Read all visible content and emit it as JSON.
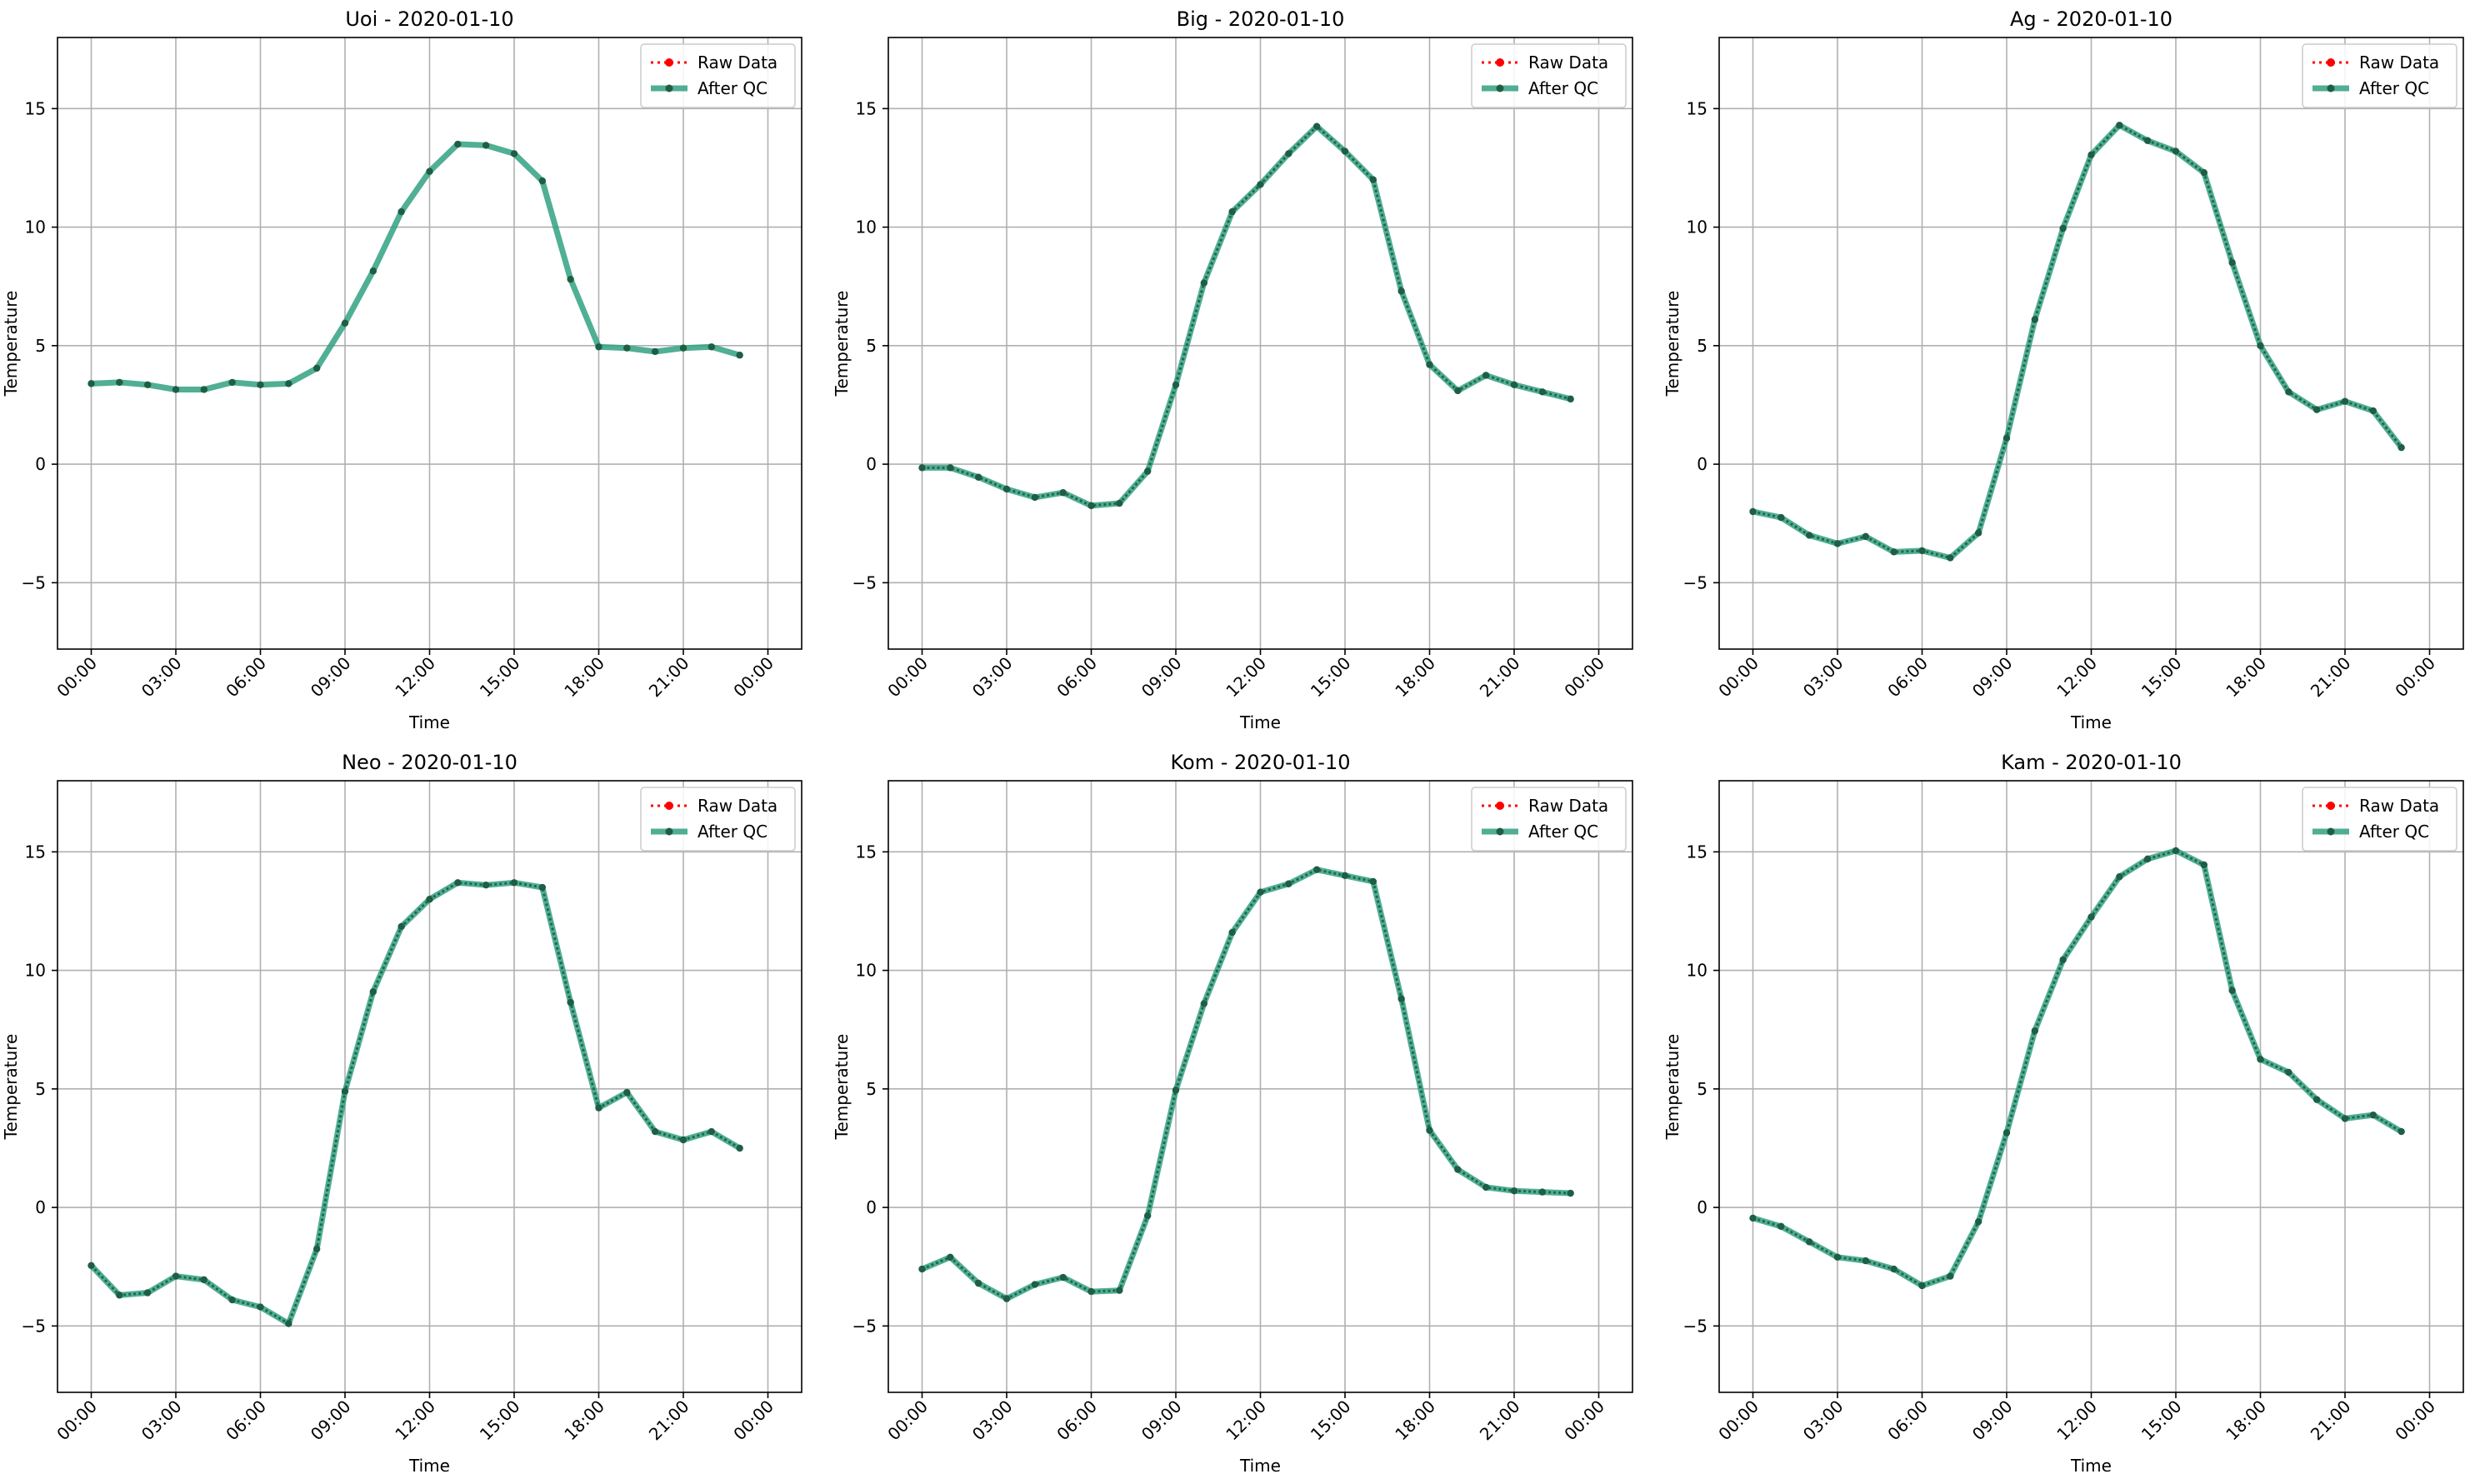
{
  "figure": {
    "background": "#ffffff",
    "raw_color": "#ff0000",
    "qc_color": "#2a9d7c",
    "marker_dark": "#1e5e45"
  },
  "chart_data": [
    {
      "type": "line",
      "title": "Uoi - 2020-01-10",
      "xlabel": "Time",
      "ylabel": "Temperature",
      "x": [
        "00:00",
        "01:00",
        "02:00",
        "03:00",
        "04:00",
        "05:00",
        "06:00",
        "07:00",
        "08:00",
        "09:00",
        "10:00",
        "11:00",
        "12:00",
        "13:00",
        "14:00",
        "15:00",
        "16:00",
        "17:00",
        "18:00",
        "19:00",
        "20:00",
        "21:00",
        "22:00",
        "23:00"
      ],
      "series": [
        {
          "name": "Raw Data",
          "values": [
            3.4,
            3.45,
            3.35,
            3.15,
            3.15,
            3.45,
            3.35,
            3.4,
            4.05,
            5.95,
            8.15,
            10.65,
            12.35,
            13.5,
            13.45,
            13.1,
            11.95,
            7.8,
            4.95,
            4.9,
            4.75,
            4.9,
            4.95,
            4.6
          ],
          "hidden": true
        },
        {
          "name": "After QC",
          "values": [
            3.4,
            3.45,
            3.35,
            3.15,
            3.15,
            3.45,
            3.35,
            3.4,
            4.05,
            5.95,
            8.15,
            10.65,
            12.35,
            13.5,
            13.45,
            13.1,
            11.95,
            7.8,
            4.95,
            4.9,
            4.75,
            4.9,
            4.95,
            4.6
          ]
        }
      ],
      "ylim": [
        -7.8,
        18.0
      ],
      "yticks": [
        "−5",
        "0",
        "5",
        "10",
        "15"
      ],
      "xticks": [
        "00:00",
        "03:00",
        "06:00",
        "09:00",
        "12:00",
        "15:00",
        "18:00",
        "21:00",
        "00:00"
      ],
      "grid": true,
      "legend": "top-right"
    },
    {
      "type": "line",
      "title": "Big - 2020-01-10",
      "xlabel": "Time",
      "ylabel": "Temperature",
      "x": [
        "00:00",
        "01:00",
        "02:00",
        "03:00",
        "04:00",
        "05:00",
        "06:00",
        "07:00",
        "08:00",
        "09:00",
        "10:00",
        "11:00",
        "12:00",
        "13:00",
        "14:00",
        "15:00",
        "16:00",
        "17:00",
        "18:00",
        "19:00",
        "20:00",
        "21:00",
        "22:00",
        "23:00"
      ],
      "series": [
        {
          "name": "Raw Data",
          "values": [
            -0.15,
            -0.15,
            -0.55,
            -1.05,
            -1.4,
            -1.2,
            -1.75,
            -1.65,
            -0.3,
            3.35,
            7.65,
            10.65,
            11.8,
            13.1,
            14.25,
            13.2,
            12.0,
            7.3,
            4.2,
            3.1,
            3.75,
            3.35,
            3.05,
            2.75
          ]
        },
        {
          "name": "After QC",
          "values": [
            -0.15,
            -0.15,
            -0.55,
            -1.05,
            -1.4,
            -1.2,
            -1.75,
            -1.65,
            -0.3,
            3.35,
            7.65,
            10.65,
            11.8,
            13.1,
            14.25,
            13.2,
            12.0,
            7.3,
            4.2,
            3.1,
            3.75,
            3.35,
            3.05,
            2.75
          ]
        }
      ],
      "ylim": [
        -7.8,
        18.0
      ],
      "yticks": [
        "−5",
        "0",
        "5",
        "10",
        "15"
      ],
      "xticks": [
        "00:00",
        "03:00",
        "06:00",
        "09:00",
        "12:00",
        "15:00",
        "18:00",
        "21:00",
        "00:00"
      ],
      "grid": true,
      "legend": "top-right"
    },
    {
      "type": "line",
      "title": "Ag - 2020-01-10",
      "xlabel": "Time",
      "ylabel": "Temperature",
      "x": [
        "00:00",
        "01:00",
        "02:00",
        "03:00",
        "04:00",
        "05:00",
        "06:00",
        "07:00",
        "08:00",
        "09:00",
        "10:00",
        "11:00",
        "12:00",
        "13:00",
        "14:00",
        "15:00",
        "16:00",
        "17:00",
        "18:00",
        "19:00",
        "20:00",
        "21:00",
        "22:00",
        "23:00"
      ],
      "series": [
        {
          "name": "Raw Data",
          "values": [
            -2.0,
            -2.25,
            -3.0,
            -3.35,
            -3.05,
            -3.7,
            -3.65,
            -3.95,
            -2.9,
            1.1,
            6.1,
            9.95,
            13.05,
            14.3,
            13.65,
            13.2,
            12.3,
            8.5,
            5.0,
            3.05,
            2.3,
            2.65,
            2.25,
            0.7
          ]
        },
        {
          "name": "After QC",
          "values": [
            -2.0,
            -2.25,
            -3.0,
            -3.35,
            -3.05,
            -3.7,
            -3.65,
            -3.95,
            -2.9,
            1.1,
            6.1,
            9.95,
            13.05,
            14.3,
            13.65,
            13.2,
            12.3,
            8.5,
            5.0,
            3.05,
            2.3,
            2.65,
            2.25,
            0.7
          ]
        }
      ],
      "ylim": [
        -7.8,
        18.0
      ],
      "yticks": [
        "−5",
        "0",
        "5",
        "10",
        "15"
      ],
      "xticks": [
        "00:00",
        "03:00",
        "06:00",
        "09:00",
        "12:00",
        "15:00",
        "18:00",
        "21:00",
        "00:00"
      ],
      "grid": true,
      "legend": "top-right"
    },
    {
      "type": "line",
      "title": "Neo - 2020-01-10",
      "xlabel": "Time",
      "ylabel": "Temperature",
      "x": [
        "00:00",
        "01:00",
        "02:00",
        "03:00",
        "04:00",
        "05:00",
        "06:00",
        "07:00",
        "08:00",
        "09:00",
        "10:00",
        "11:00",
        "12:00",
        "13:00",
        "14:00",
        "15:00",
        "16:00",
        "17:00",
        "18:00",
        "19:00",
        "20:00",
        "21:00",
        "22:00",
        "23:00"
      ],
      "series": [
        {
          "name": "Raw Data",
          "values": [
            -2.45,
            -3.7,
            -3.6,
            -2.9,
            -3.05,
            -3.9,
            -4.2,
            -4.9,
            -1.75,
            4.9,
            9.1,
            11.85,
            13.0,
            13.7,
            13.6,
            13.7,
            13.5,
            8.65,
            4.2,
            4.85,
            3.2,
            2.85,
            3.2,
            2.5
          ]
        },
        {
          "name": "After QC",
          "values": [
            -2.45,
            -3.7,
            -3.6,
            -2.9,
            -3.05,
            -3.9,
            -4.2,
            -4.9,
            -1.75,
            4.9,
            9.1,
            11.85,
            13.0,
            13.7,
            13.6,
            13.7,
            13.5,
            8.65,
            4.2,
            4.85,
            3.2,
            2.85,
            3.2,
            2.5
          ]
        }
      ],
      "ylim": [
        -7.8,
        18.0
      ],
      "yticks": [
        "−5",
        "0",
        "5",
        "10",
        "15"
      ],
      "xticks": [
        "00:00",
        "03:00",
        "06:00",
        "09:00",
        "12:00",
        "15:00",
        "18:00",
        "21:00",
        "00:00"
      ],
      "grid": true,
      "legend": "top-right"
    },
    {
      "type": "line",
      "title": "Kom - 2020-01-10",
      "xlabel": "Time",
      "ylabel": "Temperature",
      "x": [
        "00:00",
        "01:00",
        "02:00",
        "03:00",
        "04:00",
        "05:00",
        "06:00",
        "07:00",
        "08:00",
        "09:00",
        "10:00",
        "11:00",
        "12:00",
        "13:00",
        "14:00",
        "15:00",
        "16:00",
        "17:00",
        "18:00",
        "19:00",
        "20:00",
        "21:00",
        "22:00",
        "23:00"
      ],
      "series": [
        {
          "name": "Raw Data",
          "values": [
            -2.6,
            -2.1,
            -3.2,
            -3.85,
            -3.25,
            -2.95,
            -3.55,
            -3.5,
            -0.35,
            4.95,
            8.6,
            11.6,
            13.3,
            13.65,
            14.25,
            14.0,
            13.75,
            8.8,
            3.25,
            1.6,
            0.85,
            0.7,
            0.65,
            0.6
          ]
        },
        {
          "name": "After QC",
          "values": [
            -2.6,
            -2.1,
            -3.2,
            -3.85,
            -3.25,
            -2.95,
            -3.55,
            -3.5,
            -0.35,
            4.95,
            8.6,
            11.6,
            13.3,
            13.65,
            14.25,
            14.0,
            13.75,
            8.8,
            3.25,
            1.6,
            0.85,
            0.7,
            0.65,
            0.6
          ]
        }
      ],
      "ylim": [
        -7.8,
        18.0
      ],
      "yticks": [
        "−5",
        "0",
        "5",
        "10",
        "15"
      ],
      "xticks": [
        "00:00",
        "03:00",
        "06:00",
        "09:00",
        "12:00",
        "15:00",
        "18:00",
        "21:00",
        "00:00"
      ],
      "grid": true,
      "legend": "top-right"
    },
    {
      "type": "line",
      "title": "Kam - 2020-01-10",
      "xlabel": "Time",
      "ylabel": "Temperature",
      "x": [
        "00:00",
        "01:00",
        "02:00",
        "03:00",
        "04:00",
        "05:00",
        "06:00",
        "07:00",
        "08:00",
        "09:00",
        "10:00",
        "11:00",
        "12:00",
        "13:00",
        "14:00",
        "15:00",
        "16:00",
        "17:00",
        "18:00",
        "19:00",
        "20:00",
        "21:00",
        "22:00",
        "23:00"
      ],
      "series": [
        {
          "name": "Raw Data",
          "values": [
            -0.45,
            -0.8,
            -1.45,
            -2.1,
            -2.25,
            -2.6,
            -3.3,
            -2.9,
            -0.6,
            3.15,
            7.45,
            10.45,
            12.25,
            13.95,
            14.7,
            15.05,
            14.45,
            9.15,
            6.25,
            5.7,
            4.55,
            3.75,
            3.9,
            3.2
          ]
        },
        {
          "name": "After QC",
          "values": [
            -0.45,
            -0.8,
            -1.45,
            -2.1,
            -2.25,
            -2.6,
            -3.3,
            -2.9,
            -0.6,
            3.15,
            7.45,
            10.45,
            12.25,
            13.95,
            14.7,
            15.05,
            14.45,
            9.15,
            6.25,
            5.7,
            4.55,
            3.75,
            3.9,
            3.2
          ]
        }
      ],
      "ylim": [
        -7.8,
        18.0
      ],
      "yticks": [
        "−5",
        "0",
        "5",
        "10",
        "15"
      ],
      "xticks": [
        "00:00",
        "03:00",
        "06:00",
        "09:00",
        "12:00",
        "15:00",
        "18:00",
        "21:00",
        "00:00"
      ],
      "grid": true,
      "legend": "top-right"
    }
  ]
}
